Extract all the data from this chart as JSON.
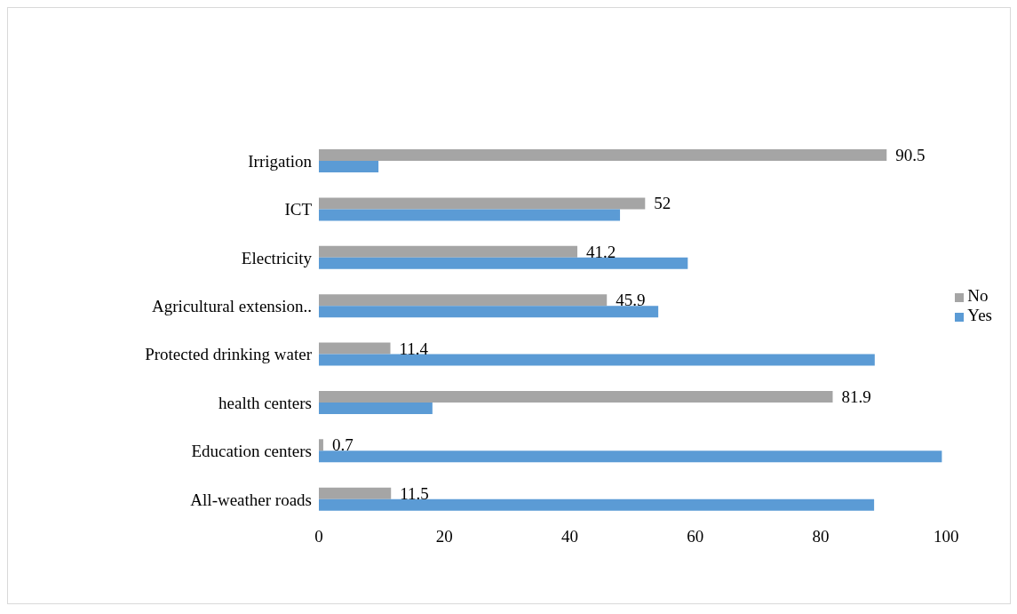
{
  "chart_data": {
    "type": "bar",
    "orientation": "horizontal",
    "categories": [
      "Irrigation",
      "ICT",
      "Electricity",
      "Agricultural extension..",
      "Protected drinking water",
      "health centers",
      "Education centers",
      "All-weather roads"
    ],
    "series": [
      {
        "name": "No",
        "color": "#a5a5a5",
        "values": [
          90.5,
          52,
          41.2,
          45.9,
          11.4,
          81.9,
          0.7,
          11.5
        ],
        "value_labels": [
          "90.5",
          "52",
          "41.2",
          "45.9",
          "11.4",
          "81.9",
          "0.7",
          "11.5"
        ]
      },
      {
        "name": "Yes",
        "color": "#5b9bd5",
        "values": [
          9.5,
          48,
          58.8,
          54.1,
          88.6,
          18.1,
          99.3,
          88.5
        ]
      }
    ],
    "xlim": [
      0,
      100
    ],
    "xticks": [
      0,
      20,
      40,
      60,
      80,
      100
    ],
    "grid": false,
    "legend": "right"
  }
}
